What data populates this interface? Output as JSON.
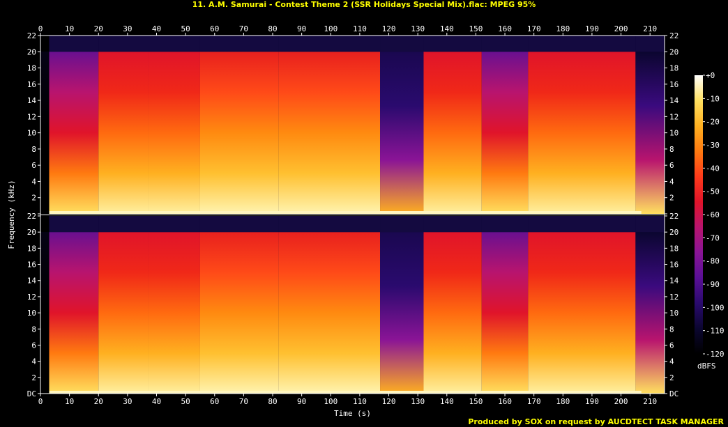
{
  "chart_data": {
    "type": "heatmap",
    "title": "11. A.M. Samurai - Contest Theme 2 (SSR Holidays Special Mix).flac: MPEG 95%",
    "xlabel": "Time (s)",
    "ylabel": "Frequency (kHz)",
    "colorbar_label": "dBFS",
    "footer": "Produced by SOX on request by AUCDTECT TASK MANAGER",
    "xlim": [
      0,
      215
    ],
    "ylim": [
      0,
      22
    ],
    "x_ticks": [
      "0",
      "10",
      "20",
      "30",
      "40",
      "50",
      "60",
      "70",
      "80",
      "90",
      "100",
      "110",
      "120",
      "130",
      "140",
      "150",
      "160",
      "170",
      "180",
      "190",
      "200",
      "210"
    ],
    "y_ticks": [
      "DC",
      "2",
      "4",
      "6",
      "8",
      "10",
      "12",
      "14",
      "16",
      "18",
      "20",
      "22"
    ],
    "colorbar_ticks": [
      "+0",
      "-10",
      "-20",
      "-30",
      "-40",
      "-50",
      "-60",
      "-70",
      "-80",
      "-90",
      "-100",
      "-110",
      "-120"
    ],
    "colorbar_range": [
      -120,
      0
    ],
    "channels": [
      "top",
      "bottom"
    ],
    "lowpass_cutoff_khz": 20,
    "segments": [
      {
        "start": 0,
        "end": 3,
        "level": "silence"
      },
      {
        "start": 3,
        "end": 20,
        "level": "medium"
      },
      {
        "start": 20,
        "end": 37,
        "level": "high"
      },
      {
        "start": 37,
        "end": 55,
        "level": "high"
      },
      {
        "start": 55,
        "end": 82,
        "level": "very-high"
      },
      {
        "start": 82,
        "end": 117,
        "level": "very-high"
      },
      {
        "start": 117,
        "end": 132,
        "level": "low"
      },
      {
        "start": 132,
        "end": 152,
        "level": "high"
      },
      {
        "start": 152,
        "end": 168,
        "level": "medium"
      },
      {
        "start": 168,
        "end": 205,
        "level": "high"
      },
      {
        "start": 205,
        "end": 215,
        "level": "fade"
      }
    ],
    "colors": {
      "title": "#ffff00",
      "footer": "#ffff00",
      "axis": "#ffffff",
      "colormap": [
        "#000000",
        "#0b0630",
        "#2a0a6e",
        "#5a0f96",
        "#8a1496",
        "#b8146e",
        "#e0142a",
        "#ff3a1a",
        "#ff7a10",
        "#ffb020",
        "#ffe060",
        "#ffffff"
      ]
    }
  }
}
